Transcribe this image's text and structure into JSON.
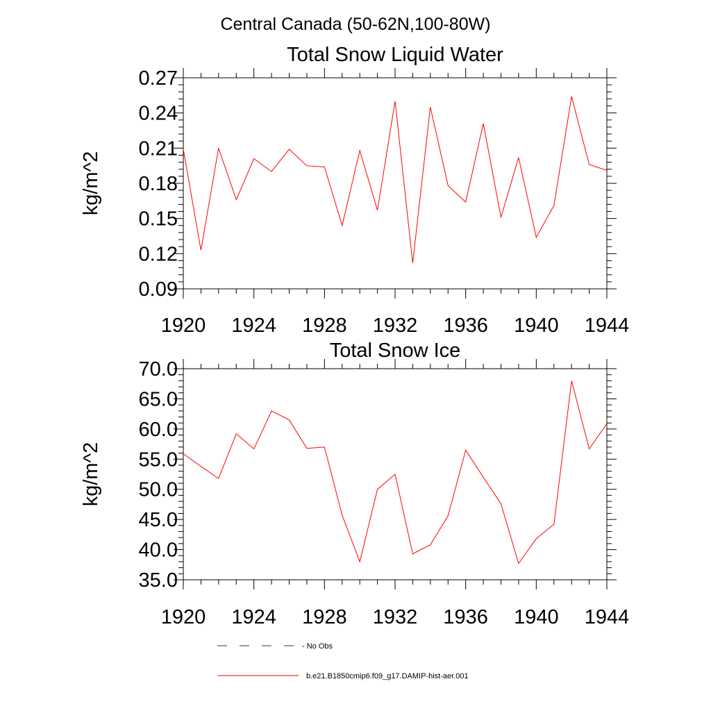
{
  "title": "Central Canada (50-62N,100-80W)",
  "chart_data": [
    {
      "type": "line",
      "title": "Total Snow Liquid Water",
      "ylabel": "kg/m^2",
      "xlabel": "",
      "xlim": [
        1920,
        1944
      ],
      "ylim": [
        0.09,
        0.27
      ],
      "xticks": [
        "1920",
        "1924",
        "1928",
        "1932",
        "1936",
        "1940",
        "1944"
      ],
      "yticks": [
        "0.09",
        "0.12",
        "0.15",
        "0.18",
        "0.21",
        "0.24",
        "0.27"
      ],
      "grid": false,
      "series": [
        {
          "name": "b.e21.B1850cmip6.f09_g17.DAMIP-hist-aer.001",
          "color": "#ff0000",
          "x": [
            1920,
            1921,
            1922,
            1923,
            1924,
            1925,
            1926,
            1927,
            1928,
            1929,
            1930,
            1931,
            1932,
            1933,
            1934,
            1935,
            1936,
            1937,
            1938,
            1939,
            1940,
            1941,
            1942,
            1943,
            1944
          ],
          "values": [
            0.209,
            0.123,
            0.21,
            0.166,
            0.201,
            0.19,
            0.209,
            0.195,
            0.194,
            0.144,
            0.208,
            0.157,
            0.25,
            0.112,
            0.245,
            0.178,
            0.164,
            0.231,
            0.151,
            0.202,
            0.134,
            0.161,
            0.254,
            0.196,
            0.191
          ]
        }
      ]
    },
    {
      "type": "line",
      "title": "Total Snow Ice",
      "ylabel": "kg/m^2",
      "xlabel": "",
      "xlim": [
        1920,
        1944
      ],
      "ylim": [
        35.0,
        70.0
      ],
      "xticks": [
        "1920",
        "1924",
        "1928",
        "1932",
        "1936",
        "1940",
        "1944"
      ],
      "yticks": [
        "35.0",
        "40.0",
        "45.0",
        "50.0",
        "55.0",
        "60.0",
        "65.0",
        "70.0"
      ],
      "grid": false,
      "series": [
        {
          "name": "b.e21.B1850cmip6.f09_g17.DAMIP-hist-aer.001",
          "color": "#ff0000",
          "x": [
            1920,
            1921,
            1922,
            1923,
            1924,
            1925,
            1926,
            1927,
            1928,
            1929,
            1930,
            1931,
            1932,
            1933,
            1934,
            1935,
            1936,
            1937,
            1938,
            1939,
            1940,
            1941,
            1942,
            1943,
            1944
          ],
          "values": [
            55.9,
            53.8,
            51.8,
            59.2,
            56.7,
            63.0,
            61.5,
            56.8,
            57.0,
            45.7,
            38.0,
            50.0,
            52.5,
            39.3,
            40.8,
            45.6,
            56.5,
            52.0,
            47.6,
            37.7,
            41.8,
            44.2,
            68.0,
            56.7,
            60.9
          ]
        }
      ]
    }
  ],
  "legend": {
    "placement": "bottom",
    "entries": [
      {
        "label": "- No Obs",
        "color": "#2b2b6b",
        "style": "dashed"
      },
      {
        "label": "b.e21.B1850cmip6.f09_g17.DAMIP-hist-aer.001",
        "color": "#ff0000",
        "style": "solid"
      }
    ]
  }
}
